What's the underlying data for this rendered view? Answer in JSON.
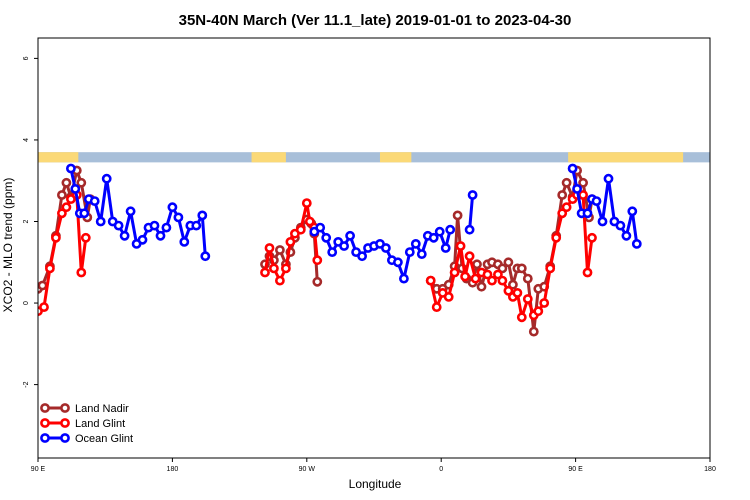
{
  "chart_data": {
    "type": "line",
    "title": "35N-40N March (Ver 11.1_late)   2019-01-01 to 2023-04-30",
    "xlabel": "Longitude",
    "ylabel": "XCO2 - MLO trend (ppm)",
    "xlim": [
      90,
      450
    ],
    "ylim": [
      -3.8,
      6.5
    ],
    "x_ticks": [
      {
        "value": 90,
        "label": "90 E"
      },
      {
        "value": 180,
        "label": "180"
      },
      {
        "value": 270,
        "label": "90 W"
      },
      {
        "value": 360,
        "label": "0"
      },
      {
        "value": 450,
        "label": "90 E"
      },
      {
        "value": 540,
        "label": "180"
      }
    ],
    "y_ticks": [
      {
        "value": -2,
        "label": "-2"
      },
      {
        "value": 0,
        "label": "0"
      },
      {
        "value": 2,
        "label": "2"
      },
      {
        "value": 4,
        "label": "4"
      },
      {
        "value": 6,
        "label": "6"
      }
    ],
    "land_ocean_band": {
      "y_range": [
        3.45,
        3.7
      ],
      "land_color": "#fbd977",
      "ocean_color": "#a8bfd9",
      "land_segments_lon": [
        [
          90,
          117
        ],
        [
          233,
          256
        ],
        [
          319,
          340
        ],
        [
          445,
          522
        ],
        [
          572,
          582
        ]
      ]
    },
    "legend": {
      "position": "bottom-left"
    },
    "series": [
      {
        "name": "Land Nadir",
        "color": "#a52a2a",
        "segments": [
          [
            [
              90,
              0.35
            ],
            [
              93,
              0.43
            ],
            [
              98,
              0.9
            ],
            [
              102,
              1.65
            ],
            [
              106,
              2.65
            ],
            [
              109,
              2.95
            ],
            [
              112,
              2.6
            ],
            [
              116,
              3.25
            ],
            [
              119,
              2.95
            ],
            [
              123,
              2.1
            ],
            [
              125,
              2.55
            ]
          ],
          [
            [
              242,
              0.95
            ],
            [
              245,
              1.15
            ],
            [
              248,
              1.05
            ],
            [
              252,
              1.3
            ],
            [
              256,
              0.95
            ],
            [
              259,
              1.25
            ],
            [
              262,
              1.6
            ],
            [
              266,
              1.85
            ],
            [
              270,
              2.05
            ],
            [
              273,
              1.95
            ],
            [
              275,
              1.7
            ],
            [
              277,
              0.52
            ]
          ],
          [
            [
              353,
              0.55
            ],
            [
              357,
              0.35
            ],
            [
              361,
              0.35
            ],
            [
              365,
              0.45
            ],
            [
              369,
              0.9
            ],
            [
              371,
              2.15
            ],
            [
              374,
              0.85
            ],
            [
              377,
              0.6
            ],
            [
              381,
              0.5
            ],
            [
              384,
              0.95
            ],
            [
              387,
              0.4
            ],
            [
              391,
              0.95
            ],
            [
              394,
              1.0
            ],
            [
              398,
              0.95
            ],
            [
              401,
              0.85
            ],
            [
              405,
              1.0
            ],
            [
              408,
              0.45
            ],
            [
              411,
              0.85
            ],
            [
              414,
              0.85
            ],
            [
              418,
              0.6
            ],
            [
              422,
              -0.7
            ],
            [
              425,
              0.35
            ],
            [
              429,
              0.4
            ],
            [
              433,
              0.9
            ],
            [
              437,
              1.65
            ],
            [
              441,
              2.65
            ],
            [
              444,
              2.95
            ],
            [
              448,
              2.6
            ],
            [
              451,
              3.25
            ],
            [
              455,
              2.95
            ],
            [
              459,
              2.1
            ],
            [
              461,
              2.55
            ]
          ]
        ]
      },
      {
        "name": "Land Glint",
        "color": "#ff0000",
        "segments": [
          [
            [
              90,
              -0.2
            ],
            [
              94,
              -0.1
            ],
            [
              98,
              0.85
            ],
            [
              102,
              1.6
            ],
            [
              106,
              2.2
            ],
            [
              109,
              2.35
            ],
            [
              112,
              2.55
            ],
            [
              116,
              2.65
            ],
            [
              119,
              0.75
            ],
            [
              122,
              1.6
            ]
          ],
          [
            [
              242,
              0.75
            ],
            [
              245,
              1.35
            ],
            [
              248,
              0.85
            ],
            [
              252,
              0.55
            ],
            [
              256,
              0.85
            ],
            [
              259,
              1.5
            ],
            [
              262,
              1.7
            ],
            [
              266,
              1.8
            ],
            [
              270,
              2.45
            ],
            [
              272,
              2.0
            ],
            [
              275,
              1.85
            ],
            [
              277,
              1.05
            ]
          ],
          [
            [
              353,
              0.55
            ],
            [
              357,
              -0.1
            ],
            [
              361,
              0.25
            ],
            [
              365,
              0.15
            ],
            [
              369,
              0.75
            ],
            [
              373,
              1.4
            ],
            [
              376,
              0.65
            ],
            [
              379,
              1.15
            ],
            [
              383,
              0.6
            ],
            [
              387,
              0.75
            ],
            [
              391,
              0.7
            ],
            [
              394,
              0.55
            ],
            [
              398,
              0.7
            ],
            [
              401,
              0.55
            ],
            [
              405,
              0.3
            ],
            [
              408,
              0.15
            ],
            [
              411,
              0.25
            ],
            [
              414,
              -0.35
            ],
            [
              418,
              0.1
            ],
            [
              422,
              -0.3
            ],
            [
              425,
              -0.2
            ],
            [
              429,
              0.0
            ],
            [
              433,
              0.85
            ],
            [
              437,
              1.6
            ],
            [
              441,
              2.2
            ],
            [
              444,
              2.35
            ],
            [
              448,
              2.55
            ],
            [
              451,
              2.65
            ],
            [
              455,
              2.65
            ],
            [
              458,
              0.75
            ],
            [
              461,
              1.6
            ]
          ]
        ]
      },
      {
        "name": "Ocean Glint",
        "color": "#0000ff",
        "segments": [
          [
            [
              112,
              3.3
            ],
            [
              115,
              2.8
            ],
            [
              118,
              2.2
            ],
            [
              121,
              2.2
            ],
            [
              124,
              2.55
            ],
            [
              128,
              2.5
            ],
            [
              132,
              2.0
            ],
            [
              136,
              3.05
            ],
            [
              140,
              2.0
            ],
            [
              144,
              1.9
            ],
            [
              148,
              1.65
            ],
            [
              152,
              2.25
            ],
            [
              156,
              1.45
            ],
            [
              160,
              1.55
            ],
            [
              164,
              1.85
            ],
            [
              168,
              1.9
            ],
            [
              172,
              1.65
            ],
            [
              176,
              1.85
            ],
            [
              180,
              2.35
            ],
            [
              184,
              2.1
            ],
            [
              188,
              1.5
            ],
            [
              192,
              1.9
            ],
            [
              196,
              1.9
            ],
            [
              200,
              2.15
            ],
            [
              202,
              1.15
            ]
          ],
          [
            [
              275,
              1.75
            ],
            [
              279,
              1.85
            ],
            [
              283,
              1.6
            ],
            [
              287,
              1.25
            ],
            [
              291,
              1.5
            ],
            [
              295,
              1.4
            ],
            [
              299,
              1.65
            ],
            [
              303,
              1.25
            ],
            [
              307,
              1.15
            ],
            [
              311,
              1.35
            ],
            [
              315,
              1.4
            ],
            [
              319,
              1.45
            ],
            [
              323,
              1.35
            ],
            [
              327,
              1.05
            ],
            [
              331,
              1.0
            ],
            [
              335,
              0.6
            ],
            [
              339,
              1.25
            ],
            [
              343,
              1.45
            ],
            [
              347,
              1.2
            ],
            [
              351,
              1.65
            ],
            [
              355,
              1.6
            ],
            [
              359,
              1.75
            ],
            [
              363,
              1.35
            ],
            [
              366,
              1.8
            ]
          ],
          [
            [
              379,
              1.8
            ],
            [
              381,
              2.65
            ]
          ],
          [
            [
              448,
              3.3
            ],
            [
              451,
              2.8
            ],
            [
              454,
              2.2
            ],
            [
              458,
              2.2
            ],
            [
              461,
              2.55
            ],
            [
              464,
              2.5
            ],
            [
              468,
              2.0
            ],
            [
              472,
              3.05
            ],
            [
              476,
              2.0
            ],
            [
              480,
              1.9
            ],
            [
              484,
              1.65
            ],
            [
              488,
              2.25
            ],
            [
              491,
              1.45
            ]
          ]
        ]
      }
    ]
  }
}
